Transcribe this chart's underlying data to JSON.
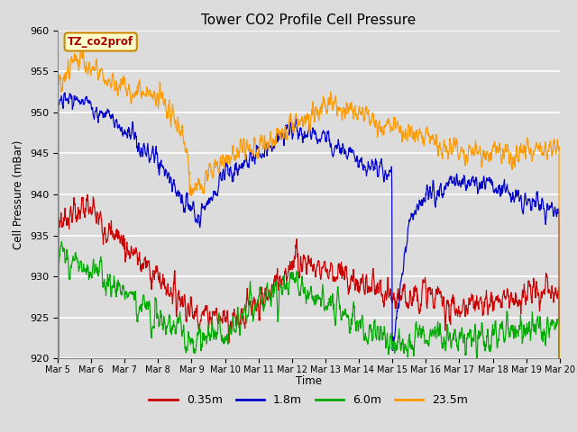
{
  "title": "Tower CO2 Profile Cell Pressure",
  "ylabel": "Cell Pressure (mBar)",
  "xlabel": "Time",
  "legend_label": "TZ_co2prof",
  "ylim": [
    920,
    960
  ],
  "series_names": [
    "0.35m",
    "1.8m",
    "6.0m",
    "23.5m"
  ],
  "series_colors": [
    "#cc0000",
    "#0000cc",
    "#00aa00",
    "#ff9900"
  ],
  "background_color": "#dcdcdc",
  "x_tick_labels": [
    "Mar 5",
    "Mar 6",
    "Mar 7",
    "Mar 8",
    "Mar 9",
    "Mar 10",
    "Mar 11",
    "Mar 12",
    "Mar 13",
    "Mar 14",
    "Mar 15",
    "Mar 16",
    "Mar 17",
    "Mar 18",
    "Mar 19",
    "Mar 20"
  ],
  "n_points": 1500,
  "seed": 7
}
